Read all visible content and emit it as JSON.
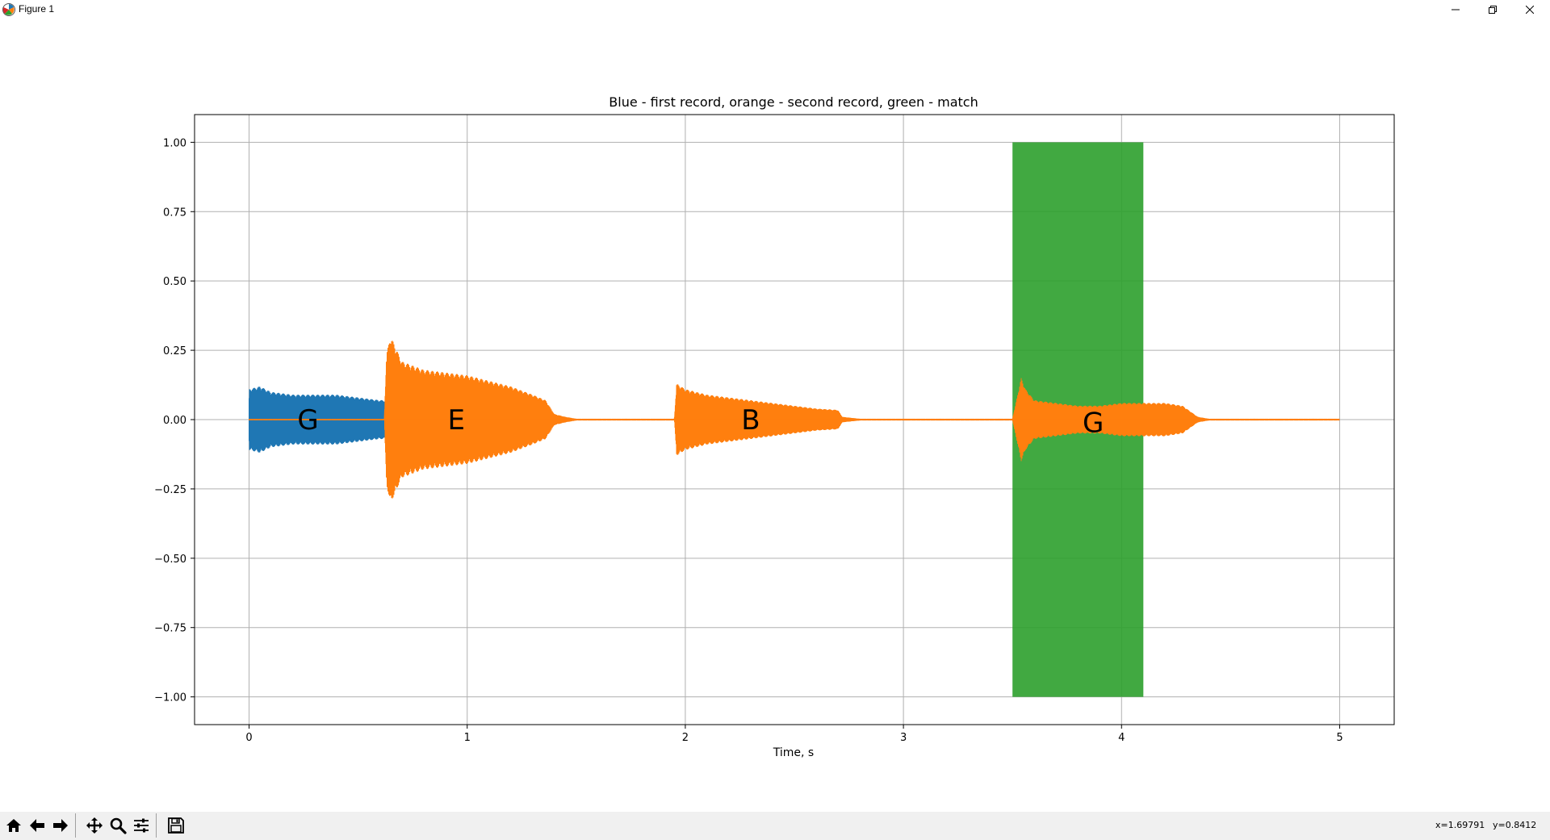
{
  "window": {
    "title": "Figure 1",
    "controls": [
      "minimize",
      "restore",
      "close"
    ]
  },
  "toolbar": {
    "buttons": [
      {
        "name": "home",
        "icon": "home-icon"
      },
      {
        "name": "back",
        "icon": "arrow-left-icon"
      },
      {
        "name": "forward",
        "icon": "arrow-right-icon"
      },
      {
        "name": "pan",
        "icon": "move-icon"
      },
      {
        "name": "zoom",
        "icon": "magnifier-icon"
      },
      {
        "name": "configure-subplots",
        "icon": "sliders-icon"
      },
      {
        "name": "save",
        "icon": "floppy-disk-icon"
      }
    ],
    "coords": {
      "x": "x=1.69791",
      "y": "y=0.8412"
    }
  },
  "chart_data": {
    "type": "line",
    "title": "Blue - first record, orange - second record, green - match",
    "xlabel": "Time, s",
    "ylabel": "",
    "xlim": [
      -0.25,
      5.25
    ],
    "ylim": [
      -1.1,
      1.1
    ],
    "xticks": [
      0,
      1,
      2,
      3,
      4,
      5
    ],
    "xtick_labels": [
      "0",
      "1",
      "2",
      "3",
      "4",
      "5"
    ],
    "yticks": [
      1.0,
      0.75,
      0.5,
      0.25,
      0.0,
      -0.25,
      -0.5,
      -0.75,
      -1.0
    ],
    "ytick_labels": [
      "1.00",
      "0.75",
      "0.50",
      "0.25",
      "0.00",
      "−0.25",
      "−0.50",
      "−0.75",
      "−1.00"
    ],
    "grid": true,
    "colors": {
      "first": "#1f77b4",
      "second": "#ff7f0e",
      "match": "#2ca02c"
    },
    "match_regions": [
      {
        "x0": 3.5,
        "x1": 4.1,
        "y0": -1.0,
        "y1": 1.0
      }
    ],
    "series": [
      {
        "color": "#1f77b4",
        "x": [
          0.0,
          0.05,
          0.1,
          0.2,
          0.3,
          0.4,
          0.5,
          0.6,
          0.62
        ],
        "envelope": [
          0.11,
          0.12,
          0.1,
          0.09,
          0.09,
          0.09,
          0.08,
          0.07,
          0.07
        ]
      },
      {
        "color": "#ff7f0e",
        "x": [
          0.0,
          0.62,
          0.63,
          0.65,
          0.7,
          0.8,
          0.9,
          1.0,
          1.1,
          1.2,
          1.3,
          1.36,
          1.4,
          1.45,
          1.5,
          1.95,
          1.96,
          2.0,
          2.1,
          2.2,
          2.3,
          2.4,
          2.5,
          2.6,
          2.7,
          2.72,
          2.8,
          3.5,
          3.54,
          3.56,
          3.6,
          3.7,
          3.8,
          3.9,
          4.0,
          4.1,
          4.2,
          4.28,
          4.35,
          4.4,
          5.0
        ],
        "envelope": [
          0.002,
          0.002,
          0.24,
          0.3,
          0.21,
          0.18,
          0.17,
          0.16,
          0.14,
          0.12,
          0.09,
          0.07,
          0.02,
          0.01,
          0.003,
          0.003,
          0.13,
          0.11,
          0.09,
          0.08,
          0.07,
          0.06,
          0.05,
          0.04,
          0.035,
          0.01,
          0.003,
          0.003,
          0.15,
          0.11,
          0.07,
          0.06,
          0.05,
          0.05,
          0.06,
          0.06,
          0.06,
          0.05,
          0.01,
          0.003,
          0.003
        ]
      }
    ],
    "annotations": [
      {
        "text": "G",
        "x": 0.27,
        "y": 0.0
      },
      {
        "text": "E",
        "x": 0.95,
        "y": 0.0
      },
      {
        "text": "B",
        "x": 2.3,
        "y": 0.0
      },
      {
        "text": "G",
        "x": 3.87,
        "y": -0.01
      }
    ]
  }
}
